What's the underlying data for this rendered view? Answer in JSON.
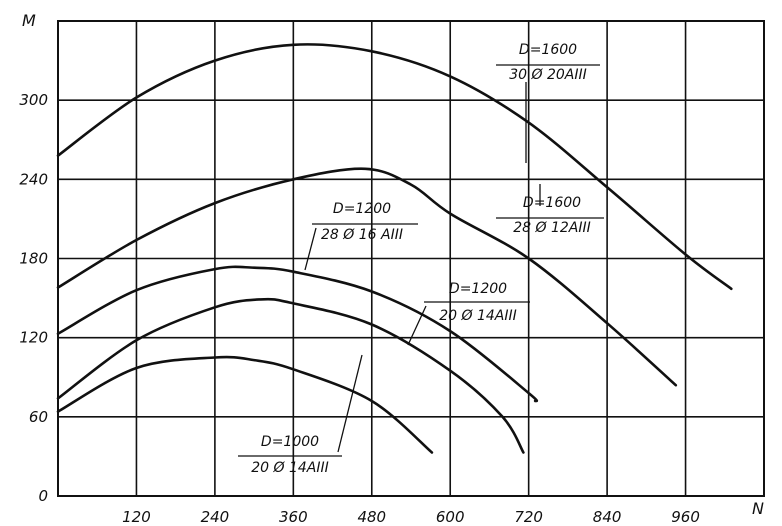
{
  "chart_data": {
    "type": "line",
    "xlabel": "N",
    "ylabel": "M",
    "xlim": [
      0,
      1080
    ],
    "ylim": [
      0,
      360
    ],
    "x_ticks": [
      120,
      240,
      360,
      480,
      600,
      720,
      840,
      960
    ],
    "y_ticks": [
      0,
      60,
      120,
      180,
      240,
      300
    ],
    "x_tick_labels": [
      "120",
      "240",
      "360",
      "480",
      "600",
      "720",
      "840",
      "960"
    ],
    "y_tick_labels": [
      "0",
      "60",
      "120",
      "180",
      "240",
      "300"
    ],
    "grid": true,
    "series": [
      {
        "id": "d1600-30",
        "label_top": "D=1600",
        "label_bottom": "30 Ø 20AIII",
        "points": [
          [
            0,
            258
          ],
          [
            120,
            302
          ],
          [
            240,
            330
          ],
          [
            360,
            342
          ],
          [
            480,
            337
          ],
          [
            600,
            318
          ],
          [
            720,
            283
          ],
          [
            840,
            234
          ],
          [
            960,
            183
          ],
          [
            1030,
            157
          ]
        ]
      },
      {
        "id": "d1600-28",
        "label_top": "D=1600",
        "label_bottom": "28 Ø 12AIII",
        "points": [
          [
            0,
            158
          ],
          [
            120,
            194
          ],
          [
            240,
            222
          ],
          [
            360,
            240
          ],
          [
            470,
            248
          ],
          [
            540,
            236
          ],
          [
            600,
            214
          ],
          [
            720,
            180
          ],
          [
            840,
            131
          ],
          [
            945,
            84
          ]
        ]
      },
      {
        "id": "d1200-28",
        "label_top": "D=1200",
        "label_bottom": "28 Ø 16 AIII",
        "points": [
          [
            0,
            123
          ],
          [
            120,
            156
          ],
          [
            240,
            172
          ],
          [
            300,
            173
          ],
          [
            360,
            170
          ],
          [
            480,
            155
          ],
          [
            600,
            125
          ],
          [
            720,
            78
          ],
          [
            730,
            72
          ]
        ]
      },
      {
        "id": "d1200-20",
        "label_top": "D=1200",
        "label_bottom": "20 Ø 14AIII",
        "points": [
          [
            0,
            74
          ],
          [
            120,
            118
          ],
          [
            240,
            143
          ],
          [
            310,
            149
          ],
          [
            360,
            146
          ],
          [
            480,
            130
          ],
          [
            600,
            95
          ],
          [
            680,
            60
          ],
          [
            712,
            33
          ]
        ]
      },
      {
        "id": "d1000-20",
        "label_top": "D=1000",
        "label_bottom": "20 Ø 14AIII",
        "points": [
          [
            0,
            64
          ],
          [
            120,
            97
          ],
          [
            240,
            105
          ],
          [
            300,
            103
          ],
          [
            360,
            96
          ],
          [
            480,
            72
          ],
          [
            572,
            33
          ]
        ]
      }
    ]
  }
}
